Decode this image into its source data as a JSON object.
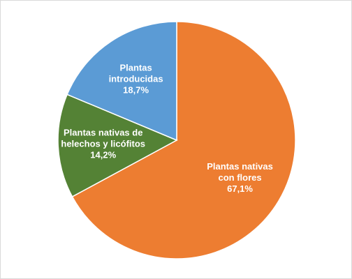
{
  "chart_data": {
    "type": "pie",
    "title": "",
    "start_angle_deg": 0,
    "direction": "clockwise",
    "slices": [
      {
        "label_lines": [
          "Plantas nativas",
          "con flores"
        ],
        "value": 67.1,
        "value_label": "67,1%",
        "color": "#ed7d31"
      },
      {
        "label_lines": [
          "Plantas nativas de",
          "helechos y licófitos"
        ],
        "value": 14.2,
        "value_label": "14,2%",
        "color": "#548235"
      },
      {
        "label_lines": [
          "Plantas",
          "introducidas"
        ],
        "value": 18.7,
        "value_label": "18,7%",
        "color": "#5b9bd5"
      }
    ]
  }
}
